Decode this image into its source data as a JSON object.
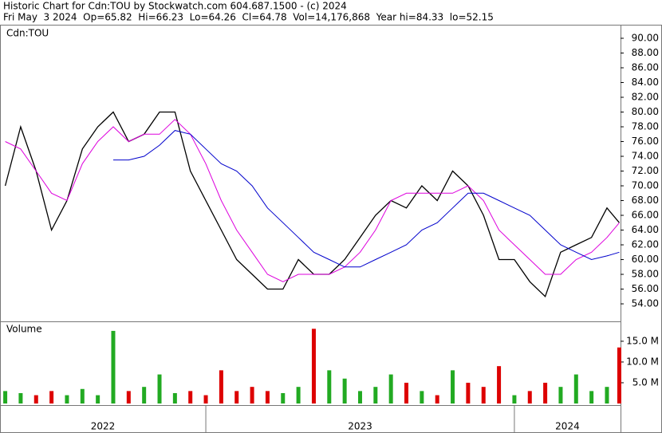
{
  "header": {
    "title": "Historic Chart for Cdn:TOU by Stockwatch.com 604.687.1500 - (c) 2024",
    "quote": "Fri May  3 2024  Op=65.82  Hi=66.23  Lo=64.26  Cl=64.78  Vol=14,176,868  Year hi=84.33  lo=52.15"
  },
  "chart_data": [
    {
      "type": "line",
      "label": "Cdn:TOU",
      "x": [
        2022.35,
        2022.4,
        2022.45,
        2022.5,
        2022.55,
        2022.6,
        2022.65,
        2022.7,
        2022.75,
        2022.8,
        2022.85,
        2022.9,
        2022.95,
        2023.0,
        2023.05,
        2023.1,
        2023.15,
        2023.2,
        2023.25,
        2023.3,
        2023.35,
        2023.4,
        2023.45,
        2023.5,
        2023.55,
        2023.6,
        2023.65,
        2023.7,
        2023.75,
        2023.8,
        2023.85,
        2023.9,
        2023.95,
        2024.0,
        2024.05,
        2024.1,
        2024.15,
        2024.2,
        2024.25,
        2024.3,
        2024.34
      ],
      "series": [
        {
          "color": "#000000",
          "values": [
            70,
            78,
            72,
            64,
            68,
            75,
            78,
            80,
            76,
            77,
            80,
            80,
            72,
            68,
            64,
            60,
            58,
            56,
            56,
            60,
            58,
            58,
            60,
            63,
            66,
            68,
            67,
            70,
            68,
            72,
            70,
            66,
            60,
            60,
            57,
            55,
            61,
            62,
            63,
            67,
            65
          ]
        },
        {
          "color": "#dd00dd",
          "values": [
            76,
            75,
            72,
            69,
            68,
            73,
            76,
            78,
            76,
            77,
            77,
            79,
            77,
            73,
            68,
            64,
            61,
            58,
            57,
            58,
            58,
            58,
            59,
            61,
            64,
            68,
            69,
            69,
            69,
            69,
            70,
            68,
            64,
            62,
            60,
            58,
            58,
            60,
            61,
            63,
            65
          ]
        },
        {
          "color": "#0000cc",
          "values": [
            null,
            null,
            null,
            null,
            null,
            null,
            null,
            73.5,
            73.5,
            74,
            75.5,
            77.5,
            77,
            75,
            73,
            72,
            70,
            67,
            65,
            63,
            61,
            60,
            59,
            59,
            60,
            61,
            62,
            64,
            65,
            67,
            69,
            69,
            68,
            67,
            66,
            64,
            62,
            61,
            60,
            60.5,
            61
          ]
        }
      ],
      "xlim": [
        2022.333,
        2024.344
      ],
      "ylim": [
        51.95,
        91.73
      ],
      "yticks": [
        {
          "value": 54,
          "label": "54.00"
        },
        {
          "value": 56,
          "label": "56.00"
        },
        {
          "value": 58,
          "label": "58.00"
        },
        {
          "value": 60,
          "label": "60.00"
        },
        {
          "value": 62,
          "label": "62.00"
        },
        {
          "value": 64,
          "label": "64.00"
        },
        {
          "value": 66,
          "label": "66.00"
        },
        {
          "value": 68,
          "label": "68.00"
        },
        {
          "value": 70,
          "label": "70.00"
        },
        {
          "value": 72,
          "label": "72.00"
        },
        {
          "value": 74,
          "label": "74.00"
        },
        {
          "value": 76,
          "label": "76.00"
        },
        {
          "value": 78,
          "label": "78.00"
        },
        {
          "value": 80,
          "label": "80.00"
        },
        {
          "value": 82,
          "label": "82.00"
        },
        {
          "value": 84,
          "label": "84.00"
        },
        {
          "value": 86,
          "label": "86.00"
        },
        {
          "value": 88,
          "label": "88.00"
        },
        {
          "value": 90,
          "label": "90.00"
        }
      ]
    },
    {
      "type": "bar",
      "title": "Volume",
      "x": [
        2022.35,
        2022.4,
        2022.45,
        2022.5,
        2022.55,
        2022.6,
        2022.65,
        2022.7,
        2022.75,
        2022.8,
        2022.85,
        2022.9,
        2022.95,
        2023.0,
        2023.05,
        2023.1,
        2023.15,
        2023.2,
        2023.25,
        2023.3,
        2023.35,
        2023.4,
        2023.45,
        2023.5,
        2023.55,
        2023.6,
        2023.65,
        2023.7,
        2023.75,
        2023.8,
        2023.85,
        2023.9,
        2023.95,
        2024.0,
        2024.05,
        2024.1,
        2024.15,
        2024.2,
        2024.25,
        2024.3,
        2024.34
      ],
      "values": [
        3,
        2.5,
        2,
        3,
        2,
        3.5,
        2,
        17.5,
        3,
        4,
        7,
        2.5,
        3,
        2,
        8,
        3,
        4,
        3,
        2.5,
        4,
        18,
        8,
        6,
        3,
        4,
        7,
        5,
        3,
        2,
        8,
        5,
        4,
        9,
        2,
        3,
        5,
        4,
        7,
        3,
        4,
        13.5
      ],
      "up_color": "#22aa22",
      "down_color": "#dd0000",
      "xlim": [
        2022.333,
        2024.344
      ],
      "ylim": [
        0,
        19.6
      ],
      "yticks": [
        {
          "value": 5,
          "label": "5.0 M"
        },
        {
          "value": 10,
          "label": "10.0 M"
        },
        {
          "value": 15,
          "label": "15.0 M"
        }
      ],
      "xticks": [
        2023,
        2024
      ],
      "year_labels": [
        "2022",
        "2023",
        "2024"
      ]
    }
  ]
}
